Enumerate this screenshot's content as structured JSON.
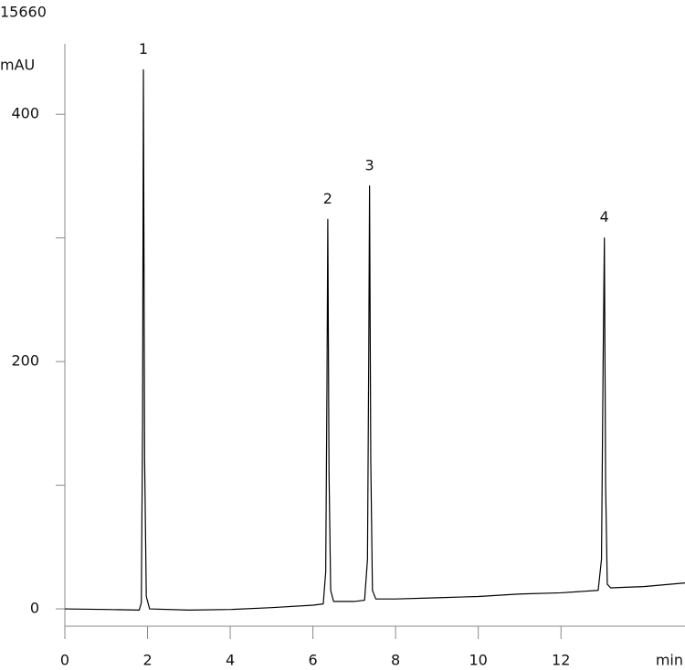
{
  "chart_data": {
    "type": "line",
    "title": "15660",
    "y_label": "mAU",
    "x_label": "min",
    "x": [
      0,
      1.0,
      1.8,
      1.85,
      1.88,
      1.9,
      1.93,
      1.97,
      2.05,
      3.0,
      4.0,
      5.0,
      6.0,
      6.25,
      6.31,
      6.34,
      6.36,
      6.39,
      6.43,
      6.5,
      7.0,
      7.25,
      7.32,
      7.35,
      7.37,
      7.4,
      7.44,
      7.52,
      8.0,
      9.0,
      10.0,
      11.0,
      12.0,
      12.9,
      12.98,
      13.02,
      13.05,
      13.08,
      13.12,
      13.2,
      14.0,
      15.0
    ],
    "series": [
      {
        "color": "#000000",
        "values": [
          0,
          -0.5,
          -1,
          5,
          150,
          436,
          120,
          10,
          0,
          -1,
          -0.5,
          1,
          3,
          4,
          30,
          180,
          315,
          110,
          15,
          6,
          6,
          7,
          40,
          200,
          342,
          120,
          15,
          8,
          8,
          9,
          10,
          12,
          13,
          15,
          40,
          200,
          300,
          100,
          20,
          17,
          18,
          21
        ]
      }
    ],
    "annotations": [
      {
        "text": "1",
        "x": 1.9,
        "y": 436
      },
      {
        "text": "2",
        "x": 6.36,
        "y": 315
      },
      {
        "text": "3",
        "x": 7.37,
        "y": 342
      },
      {
        "text": "4",
        "x": 13.05,
        "y": 300
      }
    ],
    "xlim": [
      0,
      15
    ],
    "xticks": [
      0,
      2,
      4,
      6,
      8,
      10,
      12
    ],
    "ylim": [
      -14,
      457
    ],
    "yticks": [
      0,
      200,
      400
    ],
    "yminorticks": [
      100,
      300
    ]
  }
}
